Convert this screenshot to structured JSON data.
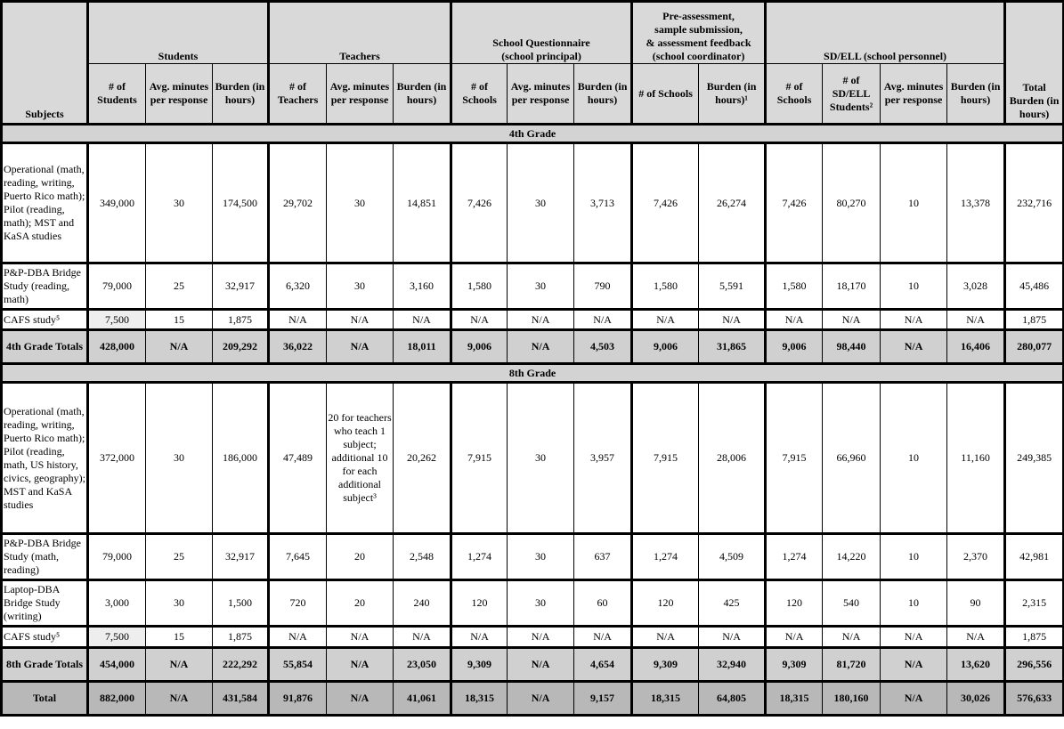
{
  "header": {
    "subjects": "Subjects",
    "groups": {
      "students": "Students",
      "teachers": "Teachers",
      "school_q": "School Questionnaire\n(school principal)",
      "pre_assess": "Pre-assessment,\nsample submission,\n& assessment feedback\n(school coordinator)",
      "sdell": "SD/ELL (school personnel)",
      "total": "Total Burden (in hours)"
    },
    "columns": [
      "# of Students",
      "Avg. minutes per response",
      "Burden (in hours)",
      "# of Teachers",
      "Avg. minutes per response",
      "Burden (in hours)",
      "# of Schools",
      "Avg. minutes per response",
      "Burden (in hours)",
      "# of Schools",
      "Burden (in hours)¹",
      "# of Schools",
      "# of SD/ELL Students²",
      "Avg. minutes per response",
      "Burden (in hours)"
    ]
  },
  "sections": [
    {
      "title": "4th Grade",
      "rows": [
        {
          "subject": "Operational (math, reading, writing, Puerto Rico math); Pilot (reading, math); MST and KaSA studies",
          "values": [
            "349,000",
            "30",
            "174,500",
            "29,702",
            "30",
            "14,851",
            "7,426",
            "30",
            "3,713",
            "7,426",
            "26,274",
            "7,426",
            "80,270",
            "10",
            "13,378",
            "232,716"
          ]
        },
        {
          "subject": "P&P-DBA Bridge Study (reading, math)",
          "values": [
            "79,000",
            "25",
            "32,917",
            "6,320",
            "30",
            "3,160",
            "1,580",
            "30",
            "790",
            "1,580",
            "5,591",
            "1,580",
            "18,170",
            "10",
            "3,028",
            "45,486"
          ]
        },
        {
          "subject": "CAFS study⁵",
          "values": [
            "7,500",
            "15",
            "1,875",
            "N/A",
            "N/A",
            "N/A",
            "N/A",
            "N/A",
            "N/A",
            "N/A",
            "N/A",
            "N/A",
            "N/A",
            "N/A",
            "N/A",
            "1,875"
          ]
        }
      ],
      "totals": {
        "subject": "4th Grade Totals",
        "values": [
          "428,000",
          "N/A",
          "209,292",
          "36,022",
          "N/A",
          "18,011",
          "9,006",
          "N/A",
          "4,503",
          "9,006",
          "31,865",
          "9,006",
          "98,440",
          "N/A",
          "16,406",
          "280,077"
        ]
      }
    },
    {
      "title": "8th Grade",
      "rows": [
        {
          "subject": "Operational (math, reading, writing, Puerto Rico math); Pilot (reading, math, US history, civics, geography); MST and KaSA studies",
          "values": [
            "372,000",
            "30",
            "186,000",
            "47,489",
            "20 for teachers who teach 1 subject; additional 10 for each additional subject³",
            "20,262",
            "7,915",
            "30",
            "3,957",
            "7,915",
            "28,006",
            "7,915",
            "66,960",
            "10",
            "11,160",
            "249,385"
          ]
        },
        {
          "subject": "P&P-DBA Bridge Study (math, reading)",
          "values": [
            "79,000",
            "25",
            "32,917",
            "7,645",
            "20",
            "2,548",
            "1,274",
            "30",
            "637",
            "1,274",
            "4,509",
            "1,274",
            "14,220",
            "10",
            "2,370",
            "42,981"
          ]
        },
        {
          "subject": "Laptop-DBA Bridge Study (writing)",
          "values": [
            "3,000",
            "30",
            "1,500",
            "720",
            "20",
            "240",
            "120",
            "30",
            "60",
            "120",
            "425",
            "120",
            "540",
            "10",
            "90",
            "2,315"
          ]
        },
        {
          "subject": "CAFS study⁵",
          "values": [
            "7,500",
            "15",
            "1,875",
            "N/A",
            "N/A",
            "N/A",
            "N/A",
            "N/A",
            "N/A",
            "N/A",
            "N/A",
            "N/A",
            "N/A",
            "N/A",
            "N/A",
            "1,875"
          ]
        }
      ],
      "totals": {
        "subject": "8th Grade Totals",
        "values": [
          "454,000",
          "N/A",
          "222,292",
          "55,854",
          "N/A",
          "23,050",
          "9,309",
          "N/A",
          "4,654",
          "9,309",
          "32,940",
          "9,309",
          "81,720",
          "N/A",
          "13,620",
          "296,556"
        ]
      }
    }
  ],
  "grand_total": {
    "subject": "Total",
    "values": [
      "882,000",
      "N/A",
      "431,584",
      "91,876",
      "N/A",
      "41,061",
      "18,315",
      "N/A",
      "9,157",
      "18,315",
      "64,805",
      "18,315",
      "180,160",
      "N/A",
      "30,026",
      "576,633"
    ]
  },
  "colors": {
    "header_bg": "#d9d9d9",
    "totals_bg": "#d0d0d0",
    "grand_total_bg": "#b8b8b8"
  }
}
